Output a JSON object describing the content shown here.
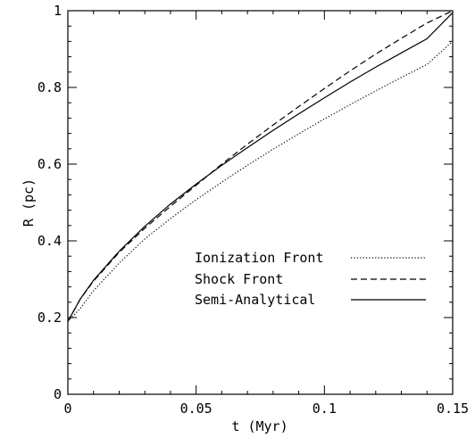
{
  "chart_data": {
    "type": "line",
    "title": "",
    "xlabel": "t (Myr)",
    "ylabel": "R (pc)",
    "xlim": [
      0,
      0.15
    ],
    "ylim": [
      0,
      1
    ],
    "xticks": [
      0,
      0.05,
      0.1,
      0.15
    ],
    "xtick_labels": [
      "0",
      "0.05",
      "0.1",
      "0.15"
    ],
    "yticks": [
      0,
      0.2,
      0.4,
      0.6,
      0.8,
      1
    ],
    "ytick_labels": [
      "0",
      "0.2",
      "0.4",
      "0.6",
      "0.8",
      "1"
    ],
    "grid": false,
    "legend": "lower-right",
    "series": [
      {
        "name": "Ionization Front",
        "style": "dotted",
        "color": "#000000",
        "x": [
          0,
          0.005,
          0.01,
          0.02,
          0.03,
          0.04,
          0.05,
          0.06,
          0.07,
          0.08,
          0.09,
          0.1,
          0.11,
          0.12,
          0.13,
          0.14,
          0.15
        ],
        "y": [
          0.19,
          0.225,
          0.27,
          0.342,
          0.405,
          0.458,
          0.507,
          0.553,
          0.597,
          0.639,
          0.679,
          0.718,
          0.755,
          0.791,
          0.826,
          0.86,
          0.92
        ]
      },
      {
        "name": "Shock Front",
        "style": "dashed",
        "color": "#000000",
        "x": [
          0,
          0.005,
          0.01,
          0.02,
          0.03,
          0.04,
          0.05,
          0.06,
          0.07,
          0.08,
          0.09,
          0.1,
          0.11,
          0.12,
          0.13,
          0.14,
          0.15
        ],
        "y": [
          0.19,
          0.25,
          0.295,
          0.37,
          0.433,
          0.49,
          0.545,
          0.6,
          0.652,
          0.702,
          0.75,
          0.797,
          0.843,
          0.887,
          0.928,
          0.968,
          1.0
        ]
      },
      {
        "name": "Semi-Analytical",
        "style": "solid",
        "color": "#000000",
        "x": [
          0,
          0.005,
          0.01,
          0.02,
          0.03,
          0.04,
          0.05,
          0.06,
          0.07,
          0.08,
          0.09,
          0.1,
          0.11,
          0.12,
          0.13,
          0.14,
          0.15
        ],
        "y": [
          0.19,
          0.25,
          0.297,
          0.373,
          0.438,
          0.496,
          0.548,
          0.597,
          0.643,
          0.688,
          0.731,
          0.773,
          0.814,
          0.853,
          0.89,
          0.927,
          0.995
        ]
      }
    ]
  }
}
